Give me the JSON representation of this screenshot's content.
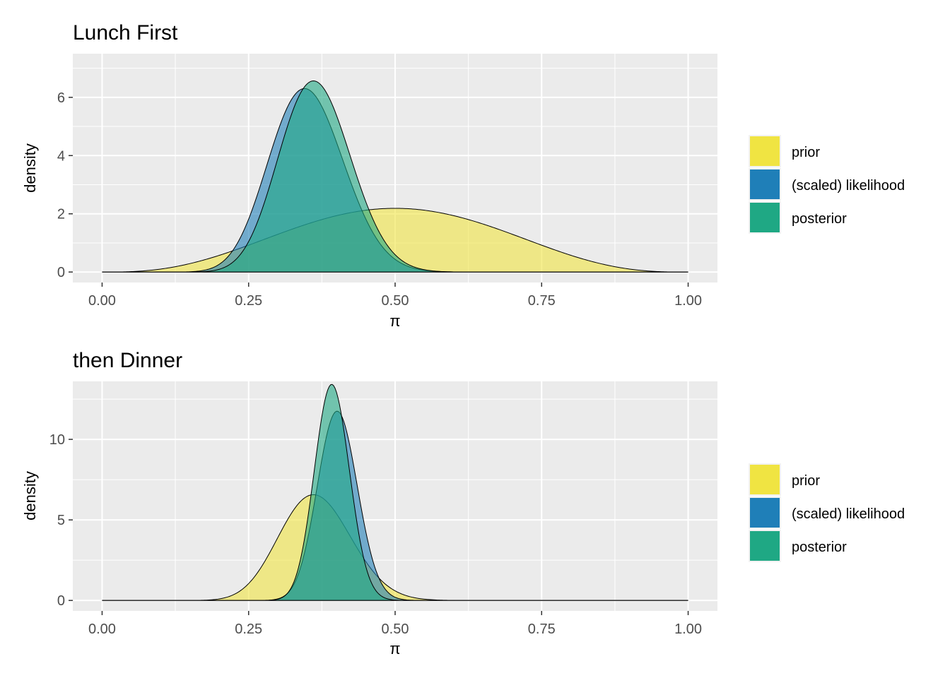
{
  "chart_data": [
    {
      "type": "area",
      "title": "Lunch First",
      "xlabel": "π",
      "ylabel": "density",
      "xlim": [
        -0.05,
        1.05
      ],
      "ylim": [
        -0.36,
        7.5
      ],
      "x_ticks": [
        0,
        0.25,
        0.5,
        0.75,
        1
      ],
      "x_tick_labels": [
        "0.00",
        "0.25",
        "0.50",
        "0.75",
        "1.00"
      ],
      "y_ticks": [
        0,
        2,
        4,
        6
      ],
      "y_tick_labels": [
        "0",
        "2",
        "4",
        "6"
      ],
      "grid": true,
      "legend_position": "right",
      "series": [
        {
          "name": "prior",
          "color": "#f0e442",
          "distribution": "beta",
          "a": 4,
          "b": 4
        },
        {
          "name": "(scaled) likelihood",
          "color": "#1f7fb8",
          "distribution": "beta",
          "a": 20,
          "b": 37
        },
        {
          "name": "posterior",
          "color": "#1fa884",
          "distribution": "beta",
          "a": 23,
          "b": 40
        }
      ]
    },
    {
      "type": "area",
      "title": "then Dinner",
      "xlabel": "π",
      "ylabel": "density",
      "xlim": [
        -0.05,
        1.05
      ],
      "ylim": [
        -0.65,
        13.6
      ],
      "x_ticks": [
        0,
        0.25,
        0.5,
        0.75,
        1
      ],
      "x_tick_labels": [
        "0.00",
        "0.25",
        "0.50",
        "0.75",
        "1.00"
      ],
      "y_ticks": [
        0,
        5,
        10
      ],
      "y_tick_labels": [
        "0",
        "5",
        "10"
      ],
      "grid": true,
      "legend_position": "right",
      "series": [
        {
          "name": "prior",
          "color": "#f0e442",
          "distribution": "beta",
          "a": 23,
          "b": 40
        },
        {
          "name": "(scaled) likelihood",
          "color": "#1f7fb8",
          "distribution": "beta",
          "a": 84,
          "b": 125
        },
        {
          "name": "posterior",
          "color": "#1fa884",
          "distribution": "beta",
          "a": 106,
          "b": 164
        }
      ]
    }
  ]
}
